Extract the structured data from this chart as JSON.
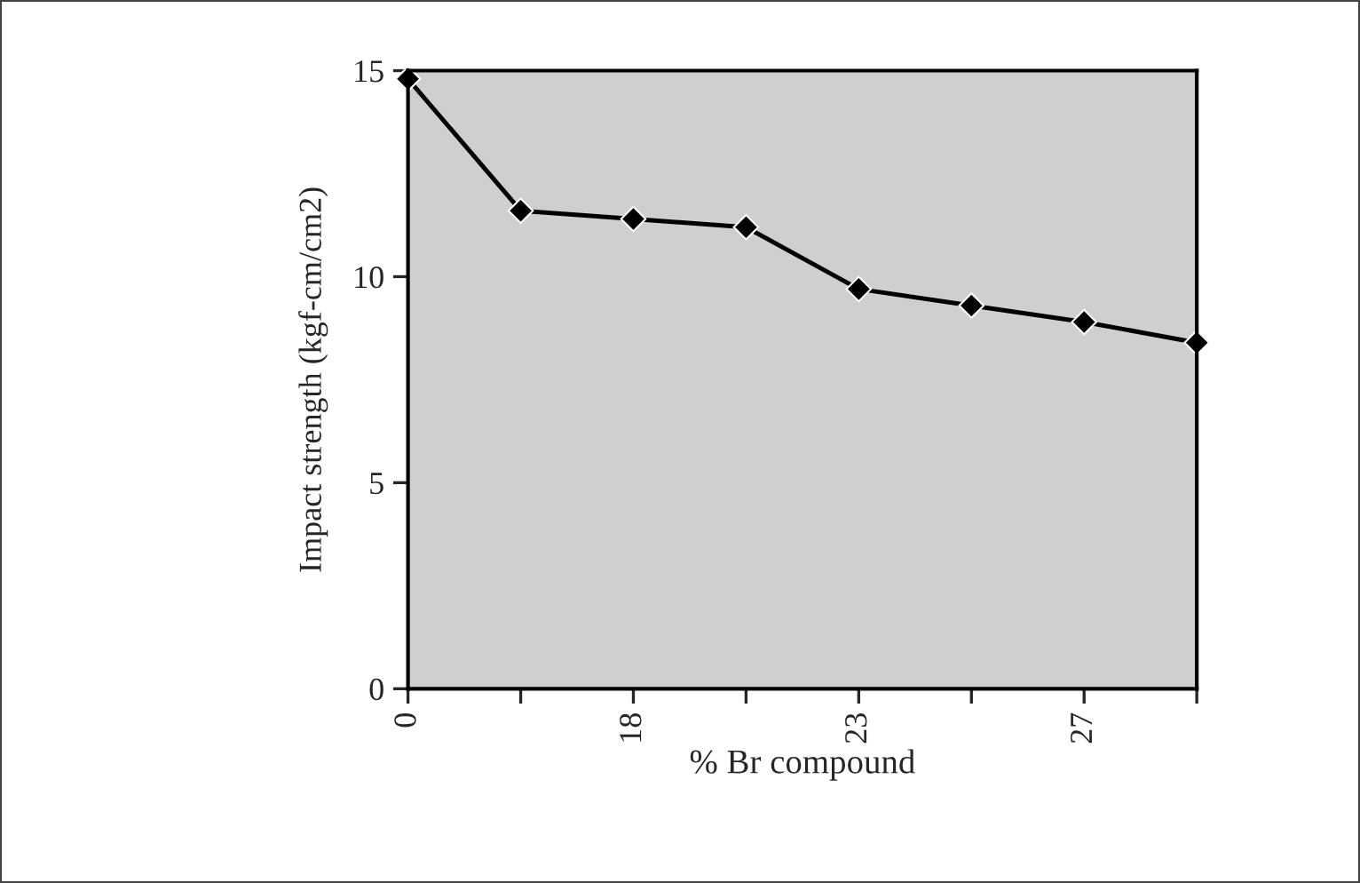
{
  "chart_data": {
    "type": "line",
    "xlabel": "% Br compound",
    "ylabel": "Impact strength (kgf-cm/cm2)",
    "categories": [
      "0",
      null,
      "18",
      null,
      "23",
      null,
      "27",
      null
    ],
    "series": [
      {
        "color": "#000000",
        "values": [
          14.8,
          11.6,
          11.4,
          11.2,
          9.7,
          9.3,
          8.9,
          8.4
        ]
      }
    ],
    "ylim": [
      0,
      15
    ],
    "yticks": [
      0,
      5,
      10,
      15
    ],
    "marker": "diamond",
    "line_style": "solid"
  }
}
